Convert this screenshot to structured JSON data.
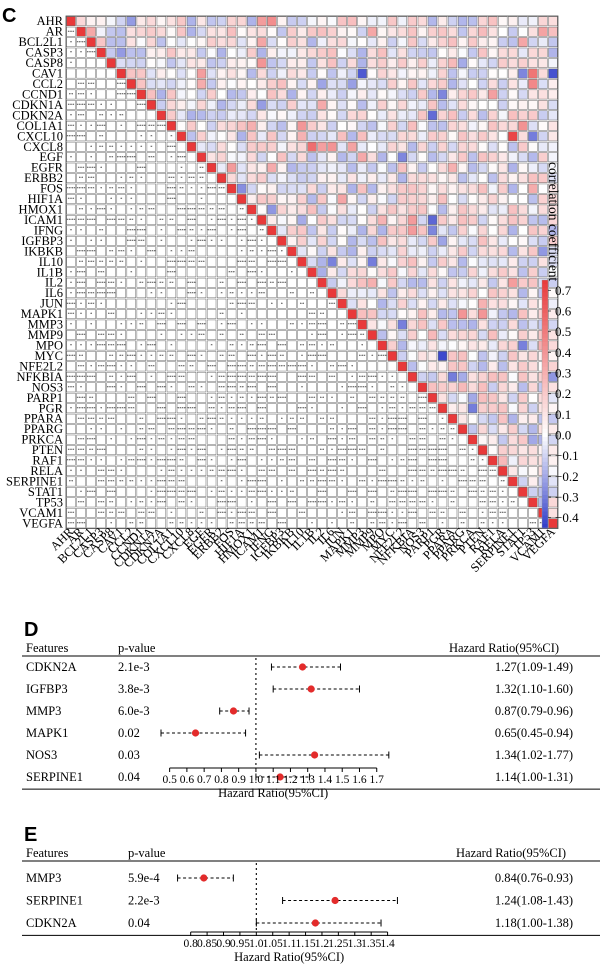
{
  "panels": {
    "c": "C",
    "d": "D",
    "e": "E"
  },
  "chart_data": [
    {
      "type": "heatmap",
      "title": "",
      "genes": [
        "AHR",
        "AR",
        "BCL2L1",
        "CASP3",
        "CASP8",
        "CAV1",
        "CCL2",
        "CCND1",
        "CDKN1A",
        "CDKN2A",
        "COL1A1",
        "CXCL10",
        "CXCL8",
        "EGF",
        "EGFR",
        "ERBB2",
        "FOS",
        "HIF1A",
        "HMOX1",
        "ICAM1",
        "IFNG",
        "IGFBP3",
        "IKBKB",
        "IL10",
        "IL1B",
        "IL2",
        "IL6",
        "JUN",
        "MAPK1",
        "MMP3",
        "MMP9",
        "MPO",
        "MYC",
        "NFE2L2",
        "NFKBIA",
        "NOS3",
        "PARP1",
        "PGR",
        "PPARA",
        "PPARG",
        "PRKCA",
        "PTEN",
        "RAF1",
        "RELA",
        "SERPINE1",
        "STAT1",
        "TP53",
        "VCAM1",
        "VEGFA"
      ],
      "legend_title": "correlation coefficient",
      "legend_ticks": [
        "0.7",
        "0.6",
        "0.5",
        "0.4",
        "0.3",
        "0.2",
        "0.1",
        "0.0",
        "−0.1",
        "−0.2",
        "−0.3",
        "−0.4"
      ],
      "color_range": [
        -0.45,
        0.75
      ],
      "colors": {
        "positive": "#e8393a",
        "negative": "#2f3cc9",
        "neutral": "#ffffff",
        "grid": "#5a5a5a"
      },
      "strong_pairs": [
        {
          "a": "AHR",
          "b": "IFNG",
          "r": 0.43
        },
        {
          "a": "AR",
          "b": "VCAM1",
          "r": 0.35
        },
        {
          "a": "CAV1",
          "b": "TP53",
          "r": 0.52
        },
        {
          "a": "CAV1",
          "b": "VEGFA",
          "r": -0.4
        },
        {
          "a": "CAV1",
          "b": "MMP3",
          "r": -0.38
        },
        {
          "a": "CCL2",
          "b": "TP53",
          "r": 0.45
        },
        {
          "a": "CDKN2A",
          "b": "PARP1",
          "r": -0.34
        },
        {
          "a": "COL1A1",
          "b": "HMOX1",
          "r": 0.3
        },
        {
          "a": "CXCL10",
          "b": "SERPINE1",
          "r": 0.7
        },
        {
          "a": "CXCL10",
          "b": "TP53",
          "r": -0.3
        },
        {
          "a": "CXCL8",
          "b": "IL1B",
          "r": 0.55
        },
        {
          "a": "CXCL8",
          "b": "MAPK1",
          "r": 0.35
        },
        {
          "a": "ICAM1",
          "b": "PARP1",
          "r": -0.35
        },
        {
          "a": "IFNG",
          "b": "PARP1",
          "r": -0.28
        },
        {
          "a": "IL2",
          "b": "MMP9",
          "r": 0.3
        },
        {
          "a": "MYC",
          "b": "PGR",
          "r": -0.42
        },
        {
          "a": "NFKBIA",
          "b": "PPARA",
          "r": -0.3
        },
        {
          "a": "PGR",
          "b": "PRKCA",
          "r": -0.3
        }
      ]
    },
    {
      "type": "forest",
      "panel": "D",
      "headers": {
        "features": "Features",
        "pvalue": "p-value",
        "hr": "Hazard Ratio(95%CI)"
      },
      "rows": [
        {
          "feature": "CDKN2A",
          "p": "2.1e-3",
          "hr": 1.27,
          "lo": 1.09,
          "hi": 1.49,
          "label": "1.27(1.09-1.49)"
        },
        {
          "feature": "IGFBP3",
          "p": "3.8e-3",
          "hr": 1.32,
          "lo": 1.1,
          "hi": 1.6,
          "label": "1.32(1.10-1.60)"
        },
        {
          "feature": "MMP3",
          "p": "6.0e-3",
          "hr": 0.87,
          "lo": 0.79,
          "hi": 0.96,
          "label": "0.87(0.79-0.96)"
        },
        {
          "feature": "MAPK1",
          "p": "0.02",
          "hr": 0.65,
          "lo": 0.45,
          "hi": 0.94,
          "label": "0.65(0.45-0.94)"
        },
        {
          "feature": "NOS3",
          "p": "0.03",
          "hr": 1.34,
          "lo": 1.02,
          "hi": 1.77,
          "label": "1.34(1.02-1.77)"
        },
        {
          "feature": "SERPINE1",
          "p": "0.04",
          "hr": 1.14,
          "lo": 1.0,
          "hi": 1.31,
          "label": "1.14(1.00-1.31)"
        }
      ],
      "xticks": [
        0.5,
        0.6,
        0.7,
        0.8,
        0.9,
        1.0,
        1.1,
        1.2,
        1.3,
        1.4,
        1.5,
        1.6,
        1.7
      ],
      "xtick_labels": [
        "0.5",
        "0.6",
        "0.7",
        "0.8",
        "0.9",
        "1.0",
        "1.1",
        "1.2",
        "1.3",
        "1.4",
        "1.5",
        "1.6",
        "1.7"
      ],
      "xlim": [
        0.45,
        1.8
      ],
      "ref_line": 1.0,
      "xlabel": "Hazard Ratio(95%CI)"
    },
    {
      "type": "forest",
      "panel": "E",
      "headers": {
        "features": "Features",
        "pvalue": "p-value",
        "hr": "Hazard Ratio(95%CI)"
      },
      "rows": [
        {
          "feature": "MMP3",
          "p": "5.9e-4",
          "hr": 0.84,
          "lo": 0.76,
          "hi": 0.93,
          "label": "0.84(0.76-0.93)"
        },
        {
          "feature": "SERPINE1",
          "p": "2.2e-3",
          "hr": 1.24,
          "lo": 1.08,
          "hi": 1.43,
          "label": "1.24(1.08-1.43)"
        },
        {
          "feature": "CDKN2A",
          "p": "0.04",
          "hr": 1.18,
          "lo": 1.0,
          "hi": 1.38,
          "label": "1.18(1.00-1.38)"
        }
      ],
      "xticks": [
        0.8,
        0.85,
        0.9,
        0.95,
        1.0,
        1.05,
        1.1,
        1.15,
        1.2,
        1.25,
        1.3,
        1.35,
        1.4
      ],
      "xtick_labels": [
        "0.8",
        "0.85",
        "0.9",
        "0.95",
        "1.0",
        "1.05",
        "1.1",
        "1.15",
        "1.2",
        "1.25",
        "1.3",
        "1.35",
        "1.4"
      ],
      "xlim": [
        0.74,
        1.45
      ],
      "ref_line": 1.0,
      "xlabel": "Hazard Ratio(95%CI)"
    }
  ]
}
